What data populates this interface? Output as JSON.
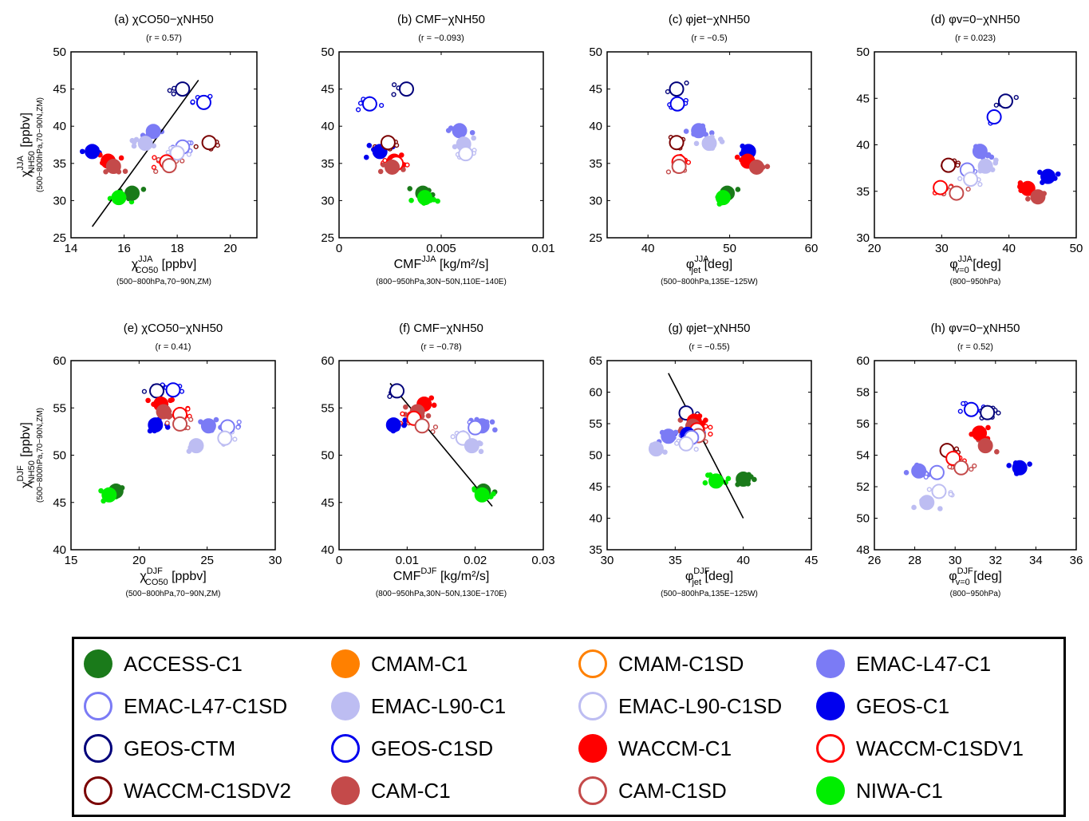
{
  "models": [
    {
      "name": "ACCESS-C1",
      "color": "#1a7a1a",
      "filled": true
    },
    {
      "name": "CMAM-C1",
      "color": "#ff8000",
      "filled": true
    },
    {
      "name": "CMAM-C1SD",
      "color": "#ff8000",
      "filled": false
    },
    {
      "name": "EMAC-L47-C1",
      "color": "#7b7bf5",
      "filled": true
    },
    {
      "name": "EMAC-L47-C1SD",
      "color": "#7b7bf5",
      "filled": false
    },
    {
      "name": "EMAC-L90-C1",
      "color": "#bdbdf2",
      "filled": true
    },
    {
      "name": "EMAC-L90-C1SD",
      "color": "#bdbdf2",
      "filled": false
    },
    {
      "name": "GEOS-C1",
      "color": "#0000ee",
      "filled": true
    },
    {
      "name": "GEOS-CTM",
      "color": "#00007a",
      "filled": false
    },
    {
      "name": "GEOS-C1SD",
      "color": "#0000ee",
      "filled": false
    },
    {
      "name": "WACCM-C1",
      "color": "#ff0000",
      "filled": true
    },
    {
      "name": "WACCM-C1SDV1",
      "color": "#ff0000",
      "filled": false
    },
    {
      "name": "WACCM-C1SDV2",
      "color": "#7a0000",
      "filled": false
    },
    {
      "name": "CAM-C1",
      "color": "#c44a4a",
      "filled": true
    },
    {
      "name": "CAM-C1SD",
      "color": "#c44a4a",
      "filled": false
    },
    {
      "name": "NIWA-C1",
      "color": "#00ee00",
      "filled": true
    }
  ],
  "chart_data": [
    {
      "type": "scatter",
      "panel": "a",
      "title": "(a) χCO50−χNH50",
      "corr": "(r = 0.57)",
      "xlabel_main": "χ",
      "xlabel_sup": "JJA",
      "xlabel_sub": "CO50",
      "xlabel_unit": " [ppbv]",
      "xlabel_note": "(500−800hPa,70−90N,ZM)",
      "ylabel_main": "χ",
      "ylabel_sup": "JJA",
      "ylabel_sub": "NH50",
      "ylabel_unit": " [ppbv]",
      "ylabel_note": "(500−800hPa,70−90N,ZM)",
      "xlim": [
        14,
        21
      ],
      "ylim": [
        25,
        50
      ],
      "xticks": [
        14,
        16,
        18,
        20
      ],
      "yticks": [
        25,
        30,
        35,
        40,
        45,
        50
      ],
      "regression": [
        [
          14.8,
          26.5
        ],
        [
          18.8,
          46.2
        ]
      ],
      "points": [
        {
          "model": "ACCESS-C1",
          "x": 16.3,
          "y": 31.0
        },
        {
          "model": "NIWA-C1",
          "x": 15.8,
          "y": 30.4
        },
        {
          "model": "GEOS-C1",
          "x": 14.8,
          "y": 36.6
        },
        {
          "model": "WACCM-C1",
          "x": 15.4,
          "y": 35.3
        },
        {
          "model": "CAM-C1",
          "x": 15.6,
          "y": 34.6
        },
        {
          "model": "EMAC-L47-C1",
          "x": 17.1,
          "y": 39.3
        },
        {
          "model": "EMAC-L90-C1",
          "x": 16.8,
          "y": 37.7
        },
        {
          "model": "GEOS-CTM",
          "x": 18.2,
          "y": 45.0
        },
        {
          "model": "GEOS-C1SD",
          "x": 19.0,
          "y": 43.2
        },
        {
          "model": "EMAC-L47-C1SD",
          "x": 18.2,
          "y": 37.2
        },
        {
          "model": "EMAC-L90-C1SD",
          "x": 18.0,
          "y": 36.4
        },
        {
          "model": "WACCM-C1SDV1",
          "x": 17.6,
          "y": 35.2
        },
        {
          "model": "CAM-C1SD",
          "x": 17.7,
          "y": 34.7
        },
        {
          "model": "WACCM-C1SDV2",
          "x": 19.2,
          "y": 37.8
        }
      ]
    },
    {
      "type": "scatter",
      "panel": "b",
      "title": "(b) CMF−χNH50",
      "corr": "(r = −0.093)",
      "xlabel_main": "CMF",
      "xlabel_sup": "JJA",
      "xlabel_sub": "",
      "xlabel_unit": " [kg/m²/s]",
      "xlabel_note": "(800−950hPa,30N−50N,110E−140E)",
      "xlim": [
        0,
        0.01
      ],
      "ylim": [
        25,
        50
      ],
      "xticks": [
        0,
        0.005,
        0.01
      ],
      "yticks": [
        25,
        30,
        35,
        40,
        45,
        50
      ],
      "xticklabels": [
        "0",
        "0.005",
        "0.01"
      ],
      "points": [
        {
          "model": "GEOS-C1SD",
          "x": 0.0015,
          "y": 43.0
        },
        {
          "model": "GEOS-CTM",
          "x": 0.0033,
          "y": 45.0
        },
        {
          "model": "GEOS-C1",
          "x": 0.002,
          "y": 36.6
        },
        {
          "model": "WACCM-C1SDV2",
          "x": 0.0024,
          "y": 37.8
        },
        {
          "model": "WACCM-C1",
          "x": 0.0027,
          "y": 35.3
        },
        {
          "model": "WACCM-C1SDV1",
          "x": 0.0028,
          "y": 35.0
        },
        {
          "model": "CAM-C1",
          "x": 0.0026,
          "y": 34.5
        },
        {
          "model": "ACCESS-C1",
          "x": 0.0041,
          "y": 31.0
        },
        {
          "model": "NIWA-C1",
          "x": 0.0042,
          "y": 30.4
        },
        {
          "model": "EMAC-L47-C1",
          "x": 0.0059,
          "y": 39.4
        },
        {
          "model": "EMAC-L90-C1",
          "x": 0.0061,
          "y": 37.6
        },
        {
          "model": "EMAC-L90-C1SD",
          "x": 0.0062,
          "y": 36.3
        }
      ]
    },
    {
      "type": "scatter",
      "panel": "c",
      "title": "(c) φjet−χNH50",
      "corr": "(r = −0.5)",
      "xlabel_main": "φ",
      "xlabel_sup": "JJA",
      "xlabel_sub": "jet",
      "xlabel_unit": " [deg]",
      "xlabel_note": "(500−800hPa,135E−125W)",
      "xlim": [
        35,
        60
      ],
      "ylim": [
        25,
        50
      ],
      "xticks": [
        40,
        50,
        60
      ],
      "yticks": [
        25,
        30,
        35,
        40,
        45,
        50
      ],
      "points": [
        {
          "model": "GEOS-CTM",
          "x": 43.5,
          "y": 45.0
        },
        {
          "model": "GEOS-C1SD",
          "x": 43.6,
          "y": 43.0
        },
        {
          "model": "WACCM-C1SDV2",
          "x": 43.5,
          "y": 37.8
        },
        {
          "model": "WACCM-C1SDV1",
          "x": 43.8,
          "y": 35.2
        },
        {
          "model": "CAM-C1SD",
          "x": 43.8,
          "y": 34.6
        },
        {
          "model": "EMAC-L47-C1",
          "x": 46.2,
          "y": 39.4
        },
        {
          "model": "EMAC-L90-C1",
          "x": 47.5,
          "y": 37.7
        },
        {
          "model": "GEOS-C1",
          "x": 52.3,
          "y": 36.6
        },
        {
          "model": "WACCM-C1",
          "x": 52.2,
          "y": 35.3
        },
        {
          "model": "CAM-C1",
          "x": 53.3,
          "y": 34.5
        },
        {
          "model": "ACCESS-C1",
          "x": 49.7,
          "y": 31.0
        },
        {
          "model": "NIWA-C1",
          "x": 49.2,
          "y": 30.4
        }
      ]
    },
    {
      "type": "scatter",
      "panel": "d",
      "title": "(d) φv=0−χNH50",
      "corr": "(r = 0.023)",
      "xlabel_main": "φ",
      "xlabel_sup": "JJA",
      "xlabel_sub": "v=0",
      "xlabel_unit": " [deg]",
      "xlabel_note": "(800−950hPa)",
      "xlim": [
        20,
        50
      ],
      "ylim": [
        30,
        50
      ],
      "xticks": [
        20,
        30,
        40,
        50
      ],
      "yticks": [
        30,
        35,
        40,
        45,
        50
      ],
      "points": [
        {
          "model": "GEOS-CTM",
          "x": 39.5,
          "y": 44.7
        },
        {
          "model": "GEOS-C1SD",
          "x": 37.8,
          "y": 43.0
        },
        {
          "model": "EMAC-L47-C1",
          "x": 35.7,
          "y": 39.3
        },
        {
          "model": "EMAC-L90-C1",
          "x": 36.5,
          "y": 37.7
        },
        {
          "model": "WACCM-C1SDV2",
          "x": 31.0,
          "y": 37.8
        },
        {
          "model": "EMAC-L47-C1SD",
          "x": 33.8,
          "y": 37.3
        },
        {
          "model": "EMAC-L90-C1SD",
          "x": 34.3,
          "y": 36.3
        },
        {
          "model": "WACCM-C1SDV1",
          "x": 29.8,
          "y": 35.4
        },
        {
          "model": "CAM-C1SD",
          "x": 32.2,
          "y": 34.8
        },
        {
          "model": "WACCM-C1",
          "x": 42.8,
          "y": 35.3
        },
        {
          "model": "CAM-C1",
          "x": 44.3,
          "y": 34.4
        },
        {
          "model": "GEOS-C1",
          "x": 45.8,
          "y": 36.6
        }
      ]
    },
    {
      "type": "scatter",
      "panel": "e",
      "title": "(e) χCO50−χNH50",
      "corr": "(r = 0.41)",
      "xlabel_main": "χ",
      "xlabel_sup": "DJF",
      "xlabel_sub": "CO50",
      "xlabel_unit": " [ppbv]",
      "xlabel_note": "(500−800hPa,70−90N,ZM)",
      "ylabel_main": "χ",
      "ylabel_sup": "DJF",
      "ylabel_sub": "NH50",
      "ylabel_unit": " [ppbv]",
      "ylabel_note": "(500−800hPa,70−90N,ZM)",
      "xlim": [
        15,
        30
      ],
      "ylim": [
        40,
        60
      ],
      "xticks": [
        15,
        20,
        25,
        30
      ],
      "yticks": [
        40,
        45,
        50,
        55,
        60
      ],
      "points": [
        {
          "model": "ACCESS-C1",
          "x": 18.3,
          "y": 46.2
        },
        {
          "model": "NIWA-C1",
          "x": 17.8,
          "y": 45.8
        },
        {
          "model": "GEOS-CTM",
          "x": 21.3,
          "y": 56.8
        },
        {
          "model": "GEOS-C1SD",
          "x": 22.5,
          "y": 56.9
        },
        {
          "model": "WACCM-C1",
          "x": 21.6,
          "y": 55.4
        },
        {
          "model": "CAM-C1",
          "x": 21.8,
          "y": 54.6
        },
        {
          "model": "GEOS-C1",
          "x": 21.2,
          "y": 53.2
        },
        {
          "model": "WACCM-C1SDV1",
          "x": 23.0,
          "y": 54.3
        },
        {
          "model": "CAM-C1SD",
          "x": 23.0,
          "y": 53.3
        },
        {
          "model": "EMAC-L47-C1",
          "x": 25.1,
          "y": 53.1
        },
        {
          "model": "EMAC-L90-C1",
          "x": 24.2,
          "y": 51.0
        },
        {
          "model": "EMAC-L47-C1SD",
          "x": 26.5,
          "y": 53.0
        },
        {
          "model": "EMAC-L90-C1SD",
          "x": 26.3,
          "y": 51.8
        }
      ]
    },
    {
      "type": "scatter",
      "panel": "f",
      "title": "(f) CMF−χNH50",
      "corr": "(r = −0.78)",
      "xlabel_main": "CMF",
      "xlabel_sup": "DJF",
      "xlabel_sub": "",
      "xlabel_unit": " [kg/m²/s]",
      "xlabel_note": "(800−950hPa,30N−50N,130E−170E)",
      "xlim": [
        0,
        0.03
      ],
      "ylim": [
        40,
        60
      ],
      "xticks": [
        0,
        0.01,
        0.02,
        0.03
      ],
      "yticks": [
        40,
        45,
        50,
        55,
        60
      ],
      "xticklabels": [
        "0",
        "0.01",
        "0.02",
        "0.03"
      ],
      "regression": [
        [
          0.0075,
          57.6
        ],
        [
          0.0225,
          44.6
        ]
      ],
      "points": [
        {
          "model": "GEOS-CTM",
          "x": 0.0085,
          "y": 56.8
        },
        {
          "model": "GEOS-C1",
          "x": 0.008,
          "y": 53.2
        },
        {
          "model": "WACCM-C1",
          "x": 0.0125,
          "y": 55.4
        },
        {
          "model": "CAM-C1",
          "x": 0.0115,
          "y": 54.6
        },
        {
          "model": "WACCM-C1SDV1",
          "x": 0.011,
          "y": 53.9
        },
        {
          "model": "CAM-C1SD",
          "x": 0.0122,
          "y": 53.1
        },
        {
          "model": "EMAC-L47-C1",
          "x": 0.021,
          "y": 53.1
        },
        {
          "model": "EMAC-L47-C1SD",
          "x": 0.02,
          "y": 52.9
        },
        {
          "model": "EMAC-L90-C1SD",
          "x": 0.0182,
          "y": 51.8
        },
        {
          "model": "EMAC-L90-C1",
          "x": 0.0195,
          "y": 51.0
        },
        {
          "model": "ACCESS-C1",
          "x": 0.0212,
          "y": 46.2
        },
        {
          "model": "NIWA-C1",
          "x": 0.021,
          "y": 45.8
        }
      ]
    },
    {
      "type": "scatter",
      "panel": "g",
      "title": "(g) φjet−χNH50",
      "corr": "(r = −0.55)",
      "xlabel_main": "φ",
      "xlabel_sup": "DJF",
      "xlabel_sub": "jet",
      "xlabel_unit": " [deg]",
      "xlabel_note": "(500−800hPa,135E−125W)",
      "xlim": [
        30,
        45
      ],
      "ylim": [
        35,
        65
      ],
      "xticks": [
        30,
        35,
        40,
        45
      ],
      "yticks": [
        35,
        40,
        45,
        50,
        55,
        60,
        65
      ],
      "regression": [
        [
          34.5,
          63.0
        ],
        [
          40.0,
          40.0
        ]
      ],
      "points": [
        {
          "model": "GEOS-CTM",
          "x": 35.8,
          "y": 56.7
        },
        {
          "model": "WACCM-C1",
          "x": 36.4,
          "y": 55.4
        },
        {
          "model": "CAM-C1",
          "x": 36.3,
          "y": 54.6
        },
        {
          "model": "WACCM-C1SDV1",
          "x": 36.6,
          "y": 54.0
        },
        {
          "model": "CAM-C1SD",
          "x": 36.7,
          "y": 53.1
        },
        {
          "model": "GEOS-C1",
          "x": 35.9,
          "y": 53.3
        },
        {
          "model": "EMAC-L47-C1",
          "x": 34.5,
          "y": 53.0
        },
        {
          "model": "EMAC-L47-C1SD",
          "x": 36.2,
          "y": 52.8
        },
        {
          "model": "EMAC-L90-C1SD",
          "x": 35.8,
          "y": 51.8
        },
        {
          "model": "EMAC-L90-C1",
          "x": 33.6,
          "y": 51.0
        },
        {
          "model": "ACCESS-C1",
          "x": 40.0,
          "y": 46.2
        },
        {
          "model": "NIWA-C1",
          "x": 38.0,
          "y": 45.9
        }
      ]
    },
    {
      "type": "scatter",
      "panel": "h",
      "title": "(h) φv=0−χNH50",
      "corr": "(r = 0.52)",
      "xlabel_main": "φ",
      "xlabel_sup": "DJF",
      "xlabel_sub": "v=0",
      "xlabel_unit": " [deg]",
      "xlabel_note": "(800−950hPa)",
      "xlim": [
        26,
        36
      ],
      "ylim": [
        48,
        60
      ],
      "xticks": [
        26,
        28,
        30,
        32,
        34,
        36
      ],
      "yticks": [
        48,
        50,
        52,
        54,
        56,
        58,
        60
      ],
      "points": [
        {
          "model": "GEOS-CTM",
          "x": 31.6,
          "y": 56.7
        },
        {
          "model": "GEOS-C1SD",
          "x": 30.8,
          "y": 56.9
        },
        {
          "model": "WACCM-C1",
          "x": 31.2,
          "y": 55.4
        },
        {
          "model": "CAM-C1",
          "x": 31.5,
          "y": 54.6
        },
        {
          "model": "WACCM-C1SDV2",
          "x": 29.6,
          "y": 54.3
        },
        {
          "model": "WACCM-C1SDV1",
          "x": 29.9,
          "y": 53.8
        },
        {
          "model": "CAM-C1SD",
          "x": 30.3,
          "y": 53.2
        },
        {
          "model": "EMAC-L47-C1",
          "x": 28.2,
          "y": 53.0
        },
        {
          "model": "EMAC-L47-C1SD",
          "x": 29.1,
          "y": 52.9
        },
        {
          "model": "EMAC-L90-C1SD",
          "x": 29.2,
          "y": 51.7
        },
        {
          "model": "EMAC-L90-C1",
          "x": 28.6,
          "y": 51.0
        },
        {
          "model": "GEOS-C1",
          "x": 33.2,
          "y": 53.2
        }
      ]
    }
  ]
}
